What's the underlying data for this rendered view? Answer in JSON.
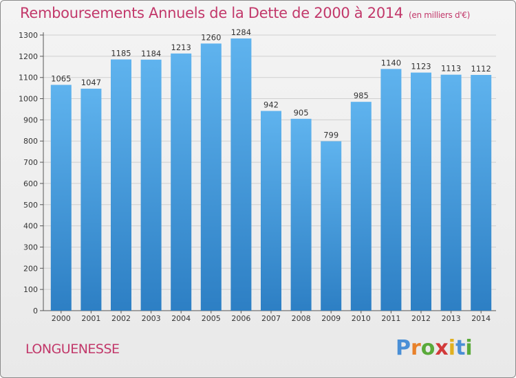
{
  "header": {
    "title": "Remboursements Annuels de la Dette de 2000 à 2014",
    "unit": "(en milliers d'€)"
  },
  "footer": {
    "city": "LONGUENESSE",
    "logo_text": "Proxiti"
  },
  "colors": {
    "title": "#c2386a",
    "bar_top": "#5fb3ee",
    "bar_bottom": "#2d7fc4",
    "logo_letters": [
      "#4a8fd6",
      "#e8812a",
      "#5aaa3a",
      "#d23a3a",
      "#e0b020",
      "#4a8fd6",
      "#5aaa3a"
    ]
  },
  "chart_data": {
    "type": "bar",
    "title": "Remboursements Annuels de la Dette de 2000 à 2014",
    "ylabel": "en milliers d'€",
    "xlabel": "",
    "categories": [
      "2000",
      "2001",
      "2002",
      "2003",
      "2004",
      "2005",
      "2006",
      "2007",
      "2008",
      "2009",
      "2010",
      "2011",
      "2012",
      "2013",
      "2014"
    ],
    "values": [
      1065,
      1047,
      1185,
      1184,
      1213,
      1260,
      1284,
      942,
      905,
      799,
      985,
      1140,
      1123,
      1113,
      1112
    ],
    "yticks": [
      "0",
      "100",
      "200",
      "300",
      "400",
      "500",
      "600",
      "700",
      "800",
      "900",
      "1000",
      "1100",
      "1200",
      "1300"
    ],
    "ylim": [
      0,
      1300
    ],
    "grid": true,
    "data_labels": true
  }
}
